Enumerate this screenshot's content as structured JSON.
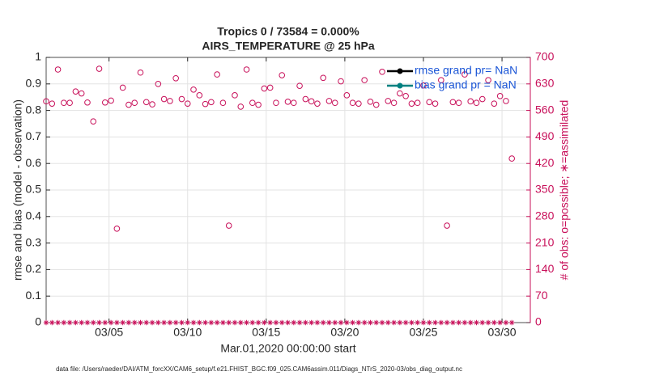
{
  "chart_data": {
    "type": "scatter",
    "title": "Tropics 0 / 73584 = 0.000%",
    "subtitle": "AIRS_TEMPERATURE @ 25 hPa",
    "xlabel": "Mar.01,2020 00:00:00 start",
    "ylabel": "rmse and bias (model - observation)",
    "y2label": "# of obs: o=possible; ∗=assimilated",
    "note": "data file: /Users/raeder/DAI/ATM_forcXX/CAM6_setup/f.e21.FHIST_BGC.f09_025.CAM6assim.011/Diags_NTrS_2020-03/obs_diag_output.nc",
    "grid": true,
    "legend_position": "northeast",
    "legend": [
      {
        "name": "rmse grand pr= NaN",
        "color": "#000000"
      },
      {
        "name": "bias grand pr = NaN",
        "color": "#008080"
      }
    ],
    "x": [
      0,
      0.375,
      0.75,
      1.125,
      1.5,
      1.875,
      2.25,
      2.625,
      3,
      3.375,
      3.75,
      4.125,
      4.5,
      4.875,
      5.25,
      5.625,
      6,
      6.375,
      6.75,
      7.125,
      7.5,
      7.875,
      8.25,
      8.625,
      9,
      9.375,
      9.75,
      10.125,
      10.5,
      10.875,
      11.25,
      11.625,
      12,
      12.375,
      12.75,
      13.125,
      13.5,
      13.875,
      14.25,
      14.625,
      15,
      15.375,
      15.75,
      16.125,
      16.5,
      16.875,
      17.25,
      17.625,
      18,
      18.375,
      18.75,
      19.125,
      19.5,
      19.875,
      20.25,
      20.625,
      21,
      21.375,
      21.75,
      22.125,
      22.5,
      22.875,
      23.25,
      23.625,
      24,
      24.375,
      24.75,
      25.125,
      25.5,
      25.875,
      26.25,
      26.625,
      27,
      27.375,
      27.75,
      28.125,
      28.5,
      28.875,
      29.25,
      29.625
    ],
    "series": [
      {
        "marker": "circle",
        "color": "#c8105a",
        "axis": "y2",
        "values": [
          584,
          578,
          668,
          580,
          580,
          610,
          605,
          581,
          531,
          670,
          581,
          586,
          248,
          620,
          575,
          580,
          660,
          582,
          576,
          630,
          590,
          585,
          645,
          590,
          578,
          615,
          600,
          577,
          582,
          655,
          580,
          256,
          600,
          570,
          668,
          580,
          575,
          618,
          620,
          580,
          653,
          583,
          580,
          625,
          590,
          584,
          578,
          646,
          585,
          580,
          637,
          600,
          580,
          578,
          640,
          583,
          575,
          662,
          585,
          580,
          605,
          598,
          578,
          580,
          626,
          582,
          578,
          640,
          256,
          582,
          580,
          655,
          584,
          580,
          590,
          640,
          578,
          598,
          585,
          433
        ]
      },
      {
        "marker": "asterisk",
        "color": "#c8105a",
        "axis": "y2",
        "values": [
          0,
          0,
          0,
          0,
          0,
          0,
          0,
          0,
          0,
          0,
          0,
          0,
          0,
          0,
          0,
          0,
          0,
          0,
          0,
          0,
          0,
          0,
          0,
          0,
          0,
          0,
          0,
          0,
          0,
          0,
          0,
          0,
          0,
          0,
          0,
          0,
          0,
          0,
          0,
          0,
          0,
          0,
          0,
          0,
          0,
          0,
          0,
          0,
          0,
          0,
          0,
          0,
          0,
          0,
          0,
          0,
          0,
          0,
          0,
          0,
          0,
          0,
          0,
          0,
          0,
          0,
          0,
          0,
          0,
          0,
          0,
          0,
          0,
          0,
          0,
          0,
          0,
          0,
          0,
          0
        ]
      }
    ],
    "xlim": [
      0,
      30.8
    ],
    "xticks": [
      {
        "value": 4,
        "label": "03/05"
      },
      {
        "value": 9,
        "label": "03/10"
      },
      {
        "value": 14,
        "label": "03/15"
      },
      {
        "value": 19,
        "label": "03/20"
      },
      {
        "value": 24,
        "label": "03/25"
      },
      {
        "value": 29,
        "label": "03/30"
      }
    ],
    "ylim": [
      0,
      1
    ],
    "yticks": [
      0,
      0.1,
      0.2,
      0.3,
      0.4,
      0.5,
      0.6,
      0.7,
      0.8,
      0.9,
      1
    ],
    "y2lim": [
      0,
      700
    ],
    "y2ticks": [
      0,
      70,
      140,
      210,
      280,
      350,
      420,
      490,
      560,
      630,
      700
    ],
    "y2color": "#c8105a"
  }
}
